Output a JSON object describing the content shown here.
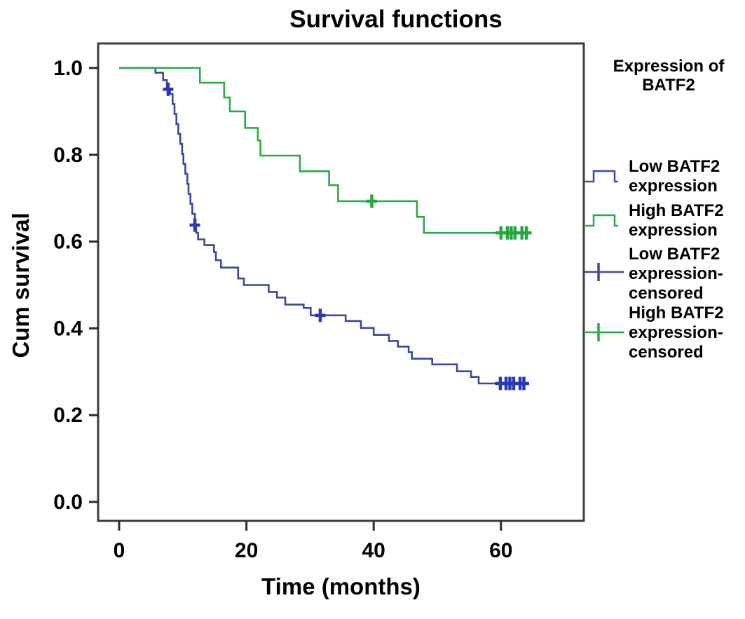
{
  "title": "Survival functions",
  "legend": {
    "header": "Expression of\nBATF2",
    "items": [
      {
        "label": "Low BATF2\nexpression",
        "type": "step",
        "color": "#3e4a9d"
      },
      {
        "label": "High BATF2\nexpression",
        "type": "step",
        "color": "#27ab47"
      },
      {
        "label": "Low BATF2\nexpression-\ncensored",
        "type": "censor",
        "color": "#3a479b"
      },
      {
        "label": "High BATF2\nexpression-\ncensored",
        "type": "censor",
        "color": "#27ab47"
      }
    ]
  },
  "chart_data": {
    "type": "line",
    "subtype": "kaplan-meier-step",
    "title": "Survival functions",
    "xlabel": "Time (months)",
    "ylabel": "Cum survival",
    "xlim": [
      -3.3,
      73
    ],
    "ylim": [
      -0.04,
      1.06
    ],
    "xticks": [
      0,
      20,
      40,
      60
    ],
    "xtick_labels": [
      "0",
      "20",
      "40",
      "60"
    ],
    "yticks": [
      0.0,
      0.2,
      0.4,
      0.6,
      0.8,
      1.0
    ],
    "ytick_labels": [
      "0.0",
      "0.2",
      "0.4",
      "0.6",
      "0.8",
      "1.0"
    ],
    "grid": false,
    "legend_position": "right",
    "frame_color": "#3c3c3c",
    "series": [
      {
        "name": "Low BATF2 expression",
        "color": "#3a479b",
        "censor_color": "#2838b4",
        "points": [
          [
            0,
            1.0
          ],
          [
            5.7,
            0.989
          ],
          [
            6.9,
            0.972
          ],
          [
            7.5,
            0.951
          ],
          [
            8.0,
            0.94
          ],
          [
            8.4,
            0.917
          ],
          [
            8.7,
            0.894
          ],
          [
            9.0,
            0.871
          ],
          [
            9.3,
            0.848
          ],
          [
            9.6,
            0.825
          ],
          [
            9.9,
            0.802
          ],
          [
            10.1,
            0.779
          ],
          [
            10.4,
            0.756
          ],
          [
            10.7,
            0.733
          ],
          [
            10.9,
            0.71
          ],
          [
            11.2,
            0.687
          ],
          [
            11.5,
            0.664
          ],
          [
            11.9,
            0.638
          ],
          [
            12.1,
            0.62
          ],
          [
            12.4,
            0.605
          ],
          [
            13.4,
            0.592
          ],
          [
            14.9,
            0.576
          ],
          [
            15.2,
            0.557
          ],
          [
            16.0,
            0.54
          ],
          [
            18.7,
            0.515
          ],
          [
            19.6,
            0.5
          ],
          [
            23.5,
            0.484
          ],
          [
            24.8,
            0.471
          ],
          [
            26.1,
            0.455
          ],
          [
            29.0,
            0.447
          ],
          [
            30.1,
            0.43
          ],
          [
            35.6,
            0.417
          ],
          [
            38.0,
            0.401
          ],
          [
            40.0,
            0.385
          ],
          [
            42.4,
            0.371
          ],
          [
            43.8,
            0.358
          ],
          [
            45.5,
            0.345
          ],
          [
            46.0,
            0.33
          ],
          [
            49.2,
            0.317
          ],
          [
            53.1,
            0.301
          ],
          [
            55.3,
            0.288
          ],
          [
            56.5,
            0.273
          ]
        ],
        "end_time": 63.7,
        "censored_times": [
          7.7,
          11.9,
          31.6,
          59.9,
          60.8,
          61.4,
          62.0,
          63.0,
          63.6
        ]
      },
      {
        "name": "High BATF2 expression",
        "color": "#27ab47",
        "censor_color": "#1ea83e",
        "points": [
          [
            0,
            1.0
          ],
          [
            12.7,
            0.966
          ],
          [
            16.5,
            0.932
          ],
          [
            17.4,
            0.9
          ],
          [
            19.8,
            0.862
          ],
          [
            21.8,
            0.833
          ],
          [
            22.2,
            0.798
          ],
          [
            28.4,
            0.762
          ],
          [
            33.0,
            0.73
          ],
          [
            34.4,
            0.693
          ],
          [
            46.8,
            0.657
          ],
          [
            47.9,
            0.62
          ]
        ],
        "end_time": 64.2,
        "censored_times": [
          39.7,
          60.0,
          61.0,
          61.6,
          62.2,
          63.3,
          64.0
        ]
      }
    ]
  }
}
